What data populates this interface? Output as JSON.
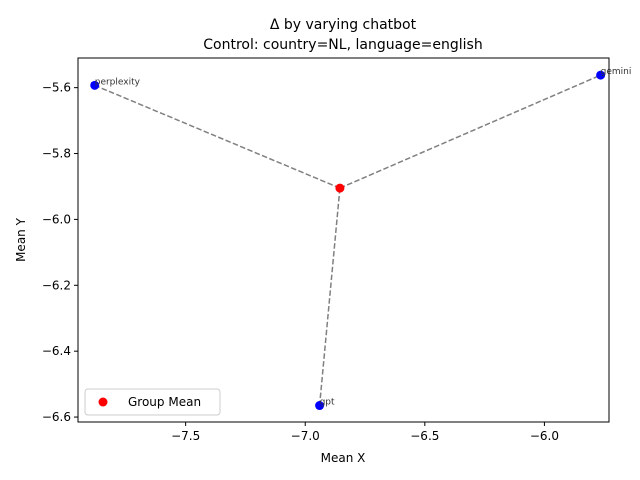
{
  "chart_data": {
    "type": "scatter",
    "title": "Δ by varying chatbot",
    "subtitle": "Control: country=NL, language=english",
    "xlabel": "Mean X",
    "ylabel": "Mean Y",
    "xlim": [
      -7.95,
      -5.73
    ],
    "ylim": [
      -6.615,
      -5.51
    ],
    "xticks": [
      -7.5,
      -7.0,
      -6.5,
      -6.0
    ],
    "xtick_labels": [
      "−7.5",
      "−7.0",
      "−6.5",
      "−6.0"
    ],
    "yticks": [
      -5.6,
      -5.8,
      -6.0,
      -6.2,
      -6.4,
      -6.6
    ],
    "ytick_labels": [
      "−5.6",
      "−5.8",
      "−6.0",
      "−6.2",
      "−6.4",
      "−6.6"
    ],
    "grid": false,
    "legend_position": "lower-left",
    "group_mean": {
      "name": "Group Mean",
      "x": -6.855,
      "y": -5.905,
      "color": "#ff0000"
    },
    "points": [
      {
        "label": "perplexity",
        "x": -7.88,
        "y": -5.593,
        "color": "#0000ff"
      },
      {
        "label": "gemini",
        "x": -5.765,
        "y": -5.562,
        "color": "#0000ff"
      },
      {
        "label": "gpt",
        "x": -6.94,
        "y": -6.565,
        "color": "#0000ff"
      }
    ],
    "connector_color": "#808080"
  }
}
